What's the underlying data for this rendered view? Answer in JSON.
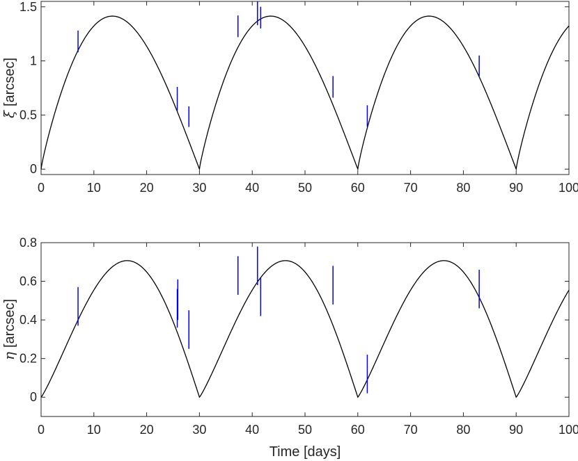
{
  "chart_data": [
    {
      "type": "line",
      "title": "",
      "xlabel": "",
      "ylabel_symbol": "ξ",
      "ylabel_unit": "[arcsec]",
      "xlim": [
        0,
        100
      ],
      "ylim": [
        -0.05,
        1.55
      ],
      "xticks": [
        "0",
        "10",
        "20",
        "30",
        "40",
        "50",
        "60",
        "70",
        "80",
        "90",
        "100"
      ],
      "xtick_values": [
        0,
        10,
        20,
        30,
        40,
        50,
        60,
        70,
        80,
        90,
        100
      ],
      "yticks": [
        "0",
        "0.5",
        "1",
        "1.5"
      ],
      "ytick_values": [
        0,
        0.5,
        1,
        1.5
      ],
      "grid": false,
      "curve": {
        "period": 30,
        "amplitude": 1.414,
        "peak_at": 13.5
      },
      "series": [
        {
          "kind": "errorbar",
          "color": "#0000ff",
          "points": [
            {
              "x": 7.0,
              "low": 1.08,
              "high": 1.28
            },
            {
              "x": 25.8,
              "low": 0.54,
              "high": 0.76
            },
            {
              "x": 28.0,
              "low": 0.39,
              "high": 0.58
            },
            {
              "x": 37.3,
              "low": 1.22,
              "high": 1.42
            },
            {
              "x": 41.0,
              "low": 1.33,
              "high": 1.55
            },
            {
              "x": 41.6,
              "low": 1.3,
              "high": 1.5
            },
            {
              "x": 55.3,
              "low": 0.66,
              "high": 0.86
            },
            {
              "x": 61.8,
              "low": 0.39,
              "high": 0.59
            },
            {
              "x": 83.0,
              "low": 0.86,
              "high": 1.05
            }
          ]
        }
      ]
    },
    {
      "type": "line",
      "title": "",
      "xlabel": "Time [days]",
      "ylabel_symbol": "η",
      "ylabel_unit": "[arcsec]",
      "xlim": [
        0,
        100
      ],
      "ylim": [
        -0.1,
        0.8
      ],
      "xticks": [
        "0",
        "10",
        "20",
        "30",
        "40",
        "50",
        "60",
        "70",
        "80",
        "90",
        "100"
      ],
      "xtick_values": [
        0,
        10,
        20,
        30,
        40,
        50,
        60,
        70,
        80,
        90,
        100
      ],
      "yticks": [
        "0",
        "0.2",
        "0.4",
        "0.6",
        "0.8"
      ],
      "ytick_values": [
        0,
        0.2,
        0.4,
        0.6,
        0.8
      ],
      "grid": false,
      "curve": {
        "period": 30,
        "amplitude": 0.707,
        "peak_at": 16.3
      },
      "series": [
        {
          "kind": "errorbar",
          "color": "#0000ff",
          "points": [
            {
              "x": 7.0,
              "low": 0.37,
              "high": 0.57
            },
            {
              "x": 25.8,
              "low": 0.36,
              "high": 0.56
            },
            {
              "x": 25.9,
              "low": 0.4,
              "high": 0.61
            },
            {
              "x": 28.0,
              "low": 0.25,
              "high": 0.45
            },
            {
              "x": 37.3,
              "low": 0.53,
              "high": 0.73
            },
            {
              "x": 41.0,
              "low": 0.58,
              "high": 0.78
            },
            {
              "x": 41.6,
              "low": 0.42,
              "high": 0.62
            },
            {
              "x": 55.3,
              "low": 0.48,
              "high": 0.68
            },
            {
              "x": 61.8,
              "low": 0.02,
              "high": 0.22
            },
            {
              "x": 83.0,
              "low": 0.46,
              "high": 0.66
            }
          ]
        }
      ]
    }
  ]
}
